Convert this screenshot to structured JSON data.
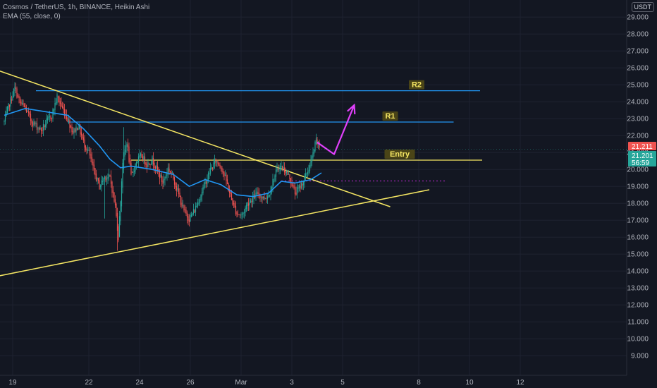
{
  "header": {
    "title": "Cosmos / TetherUS, 1h, BINANCE, Heikin Ashi",
    "indicator": "EMA (55, close, 0)",
    "currency": "USDT"
  },
  "colors": {
    "background": "#131722",
    "up": "#26a69a",
    "down": "#ef5350",
    "ema": "#2196f3",
    "trendline": "#f5e663",
    "level": "#2196f3",
    "arrow": "#e040fb",
    "price_red": "#ef5350",
    "price_green": "#26a69a"
  },
  "price_tags": {
    "last": "21.211",
    "close": "21.201",
    "countdown": "56:59"
  },
  "chart_data": {
    "type": "candlestick",
    "yaxis": {
      "ticks": [
        "9.000",
        "10.000",
        "11.000",
        "12.000",
        "13.000",
        "14.000",
        "15.000",
        "16.000",
        "17.000",
        "18.000",
        "19.000",
        "20.000",
        "21.000",
        "22.000",
        "23.000",
        "24.000",
        "25.000",
        "26.000",
        "27.000",
        "28.000",
        "29.000"
      ],
      "range": [
        8.5,
        29.8
      ]
    },
    "xaxis": {
      "ticks": [
        {
          "label": "19",
          "bar": 8
        },
        {
          "label": "22",
          "bar": 80
        },
        {
          "label": "24",
          "bar": 128
        },
        {
          "label": "26",
          "bar": 176
        },
        {
          "label": "Mar",
          "bar": 224
        },
        {
          "label": "3",
          "bar": 272
        },
        {
          "label": "5",
          "bar": 320
        },
        {
          "label": "8",
          "bar": 392
        },
        {
          "label": "10",
          "bar": 440
        },
        {
          "label": "12",
          "bar": 488
        }
      ]
    },
    "anchors": [
      [
        0,
        22.8
      ],
      [
        5,
        23.9
      ],
      [
        10,
        24.8
      ],
      [
        15,
        23.9
      ],
      [
        20,
        23.6
      ],
      [
        25,
        22.9
      ],
      [
        30,
        22.6
      ],
      [
        35,
        22.3
      ],
      [
        40,
        22.8
      ],
      [
        45,
        23.2
      ],
      [
        50,
        24.3
      ],
      [
        55,
        23.6
      ],
      [
        60,
        23.0
      ],
      [
        65,
        22.2
      ],
      [
        70,
        22.6
      ],
      [
        75,
        21.6
      ],
      [
        80,
        21.0
      ],
      [
        85,
        19.8
      ],
      [
        90,
        19.0
      ],
      [
        95,
        19.6
      ],
      [
        100,
        19.5
      ],
      [
        105,
        17.8
      ],
      [
        108,
        16.0
      ],
      [
        112,
        20.5
      ],
      [
        116,
        21.7
      ],
      [
        120,
        19.5
      ],
      [
        125,
        20.5
      ],
      [
        130,
        20.8
      ],
      [
        135,
        20.3
      ],
      [
        140,
        20.6
      ],
      [
        145,
        19.9
      ],
      [
        150,
        19.2
      ],
      [
        155,
        20.1
      ],
      [
        160,
        19.5
      ],
      [
        165,
        18.5
      ],
      [
        170,
        17.5
      ],
      [
        175,
        17.1
      ],
      [
        180,
        17.6
      ],
      [
        185,
        18.4
      ],
      [
        190,
        19.2
      ],
      [
        195,
        20.0
      ],
      [
        200,
        20.5
      ],
      [
        205,
        20.2
      ],
      [
        210,
        19.3
      ],
      [
        215,
        18.2
      ],
      [
        220,
        17.4
      ],
      [
        225,
        17.3
      ],
      [
        230,
        18.0
      ],
      [
        235,
        18.3
      ],
      [
        240,
        18.6
      ],
      [
        245,
        18.3
      ],
      [
        250,
        18.5
      ],
      [
        255,
        19.5
      ],
      [
        260,
        20.2
      ],
      [
        265,
        20.0
      ],
      [
        270,
        19.5
      ],
      [
        275,
        18.6
      ],
      [
        280,
        19.0
      ],
      [
        285,
        19.6
      ],
      [
        290,
        20.4
      ],
      [
        295,
        21.7
      ],
      [
        298,
        21.3
      ]
    ],
    "ema": {
      "name": "EMA (55, close, 0)",
      "points": [
        [
          0,
          23.2
        ],
        [
          20,
          23.6
        ],
        [
          40,
          23.4
        ],
        [
          60,
          23.2
        ],
        [
          75,
          22.4
        ],
        [
          90,
          21.4
        ],
        [
          100,
          20.6
        ],
        [
          110,
          20.1
        ],
        [
          120,
          20.2
        ],
        [
          140,
          20.0
        ],
        [
          160,
          19.7
        ],
        [
          175,
          19.0
        ],
        [
          190,
          19.4
        ],
        [
          205,
          19.1
        ],
        [
          220,
          18.5
        ],
        [
          235,
          18.4
        ],
        [
          250,
          18.6
        ],
        [
          262,
          19.3
        ],
        [
          275,
          19.2
        ],
        [
          290,
          19.4
        ],
        [
          300,
          19.8
        ]
      ]
    },
    "levels": [
      {
        "label": "R2",
        "value": 24.65,
        "bar_start": 30,
        "bar_end": 450,
        "color": "#2196f3"
      },
      {
        "label": "R1",
        "value": 22.8,
        "bar_start": 60,
        "bar_end": 425,
        "color": "#2196f3"
      },
      {
        "label": "Entry",
        "value": 20.55,
        "bar_start": 120,
        "bar_end": 452,
        "color": "#f5e663"
      }
    ],
    "dotted_level": {
      "value": 19.32,
      "bar_start": 262,
      "bar_end": 418,
      "color": "#9c27b0"
    },
    "trendlines": [
      {
        "name": "descending",
        "points": [
          [
            -22,
            26.2
          ],
          [
            365,
            17.8
          ]
        ]
      },
      {
        "name": "ascending",
        "points": [
          [
            -22,
            13.5
          ],
          [
            402,
            18.8
          ]
        ]
      }
    ],
    "projection": {
      "points": [
        [
          296,
          21.6
        ],
        [
          312,
          20.9
        ],
        [
          331,
          23.8
        ]
      ]
    },
    "bar_layout": {
      "first_x": 6,
      "step": 1.5,
      "count": 299
    }
  }
}
